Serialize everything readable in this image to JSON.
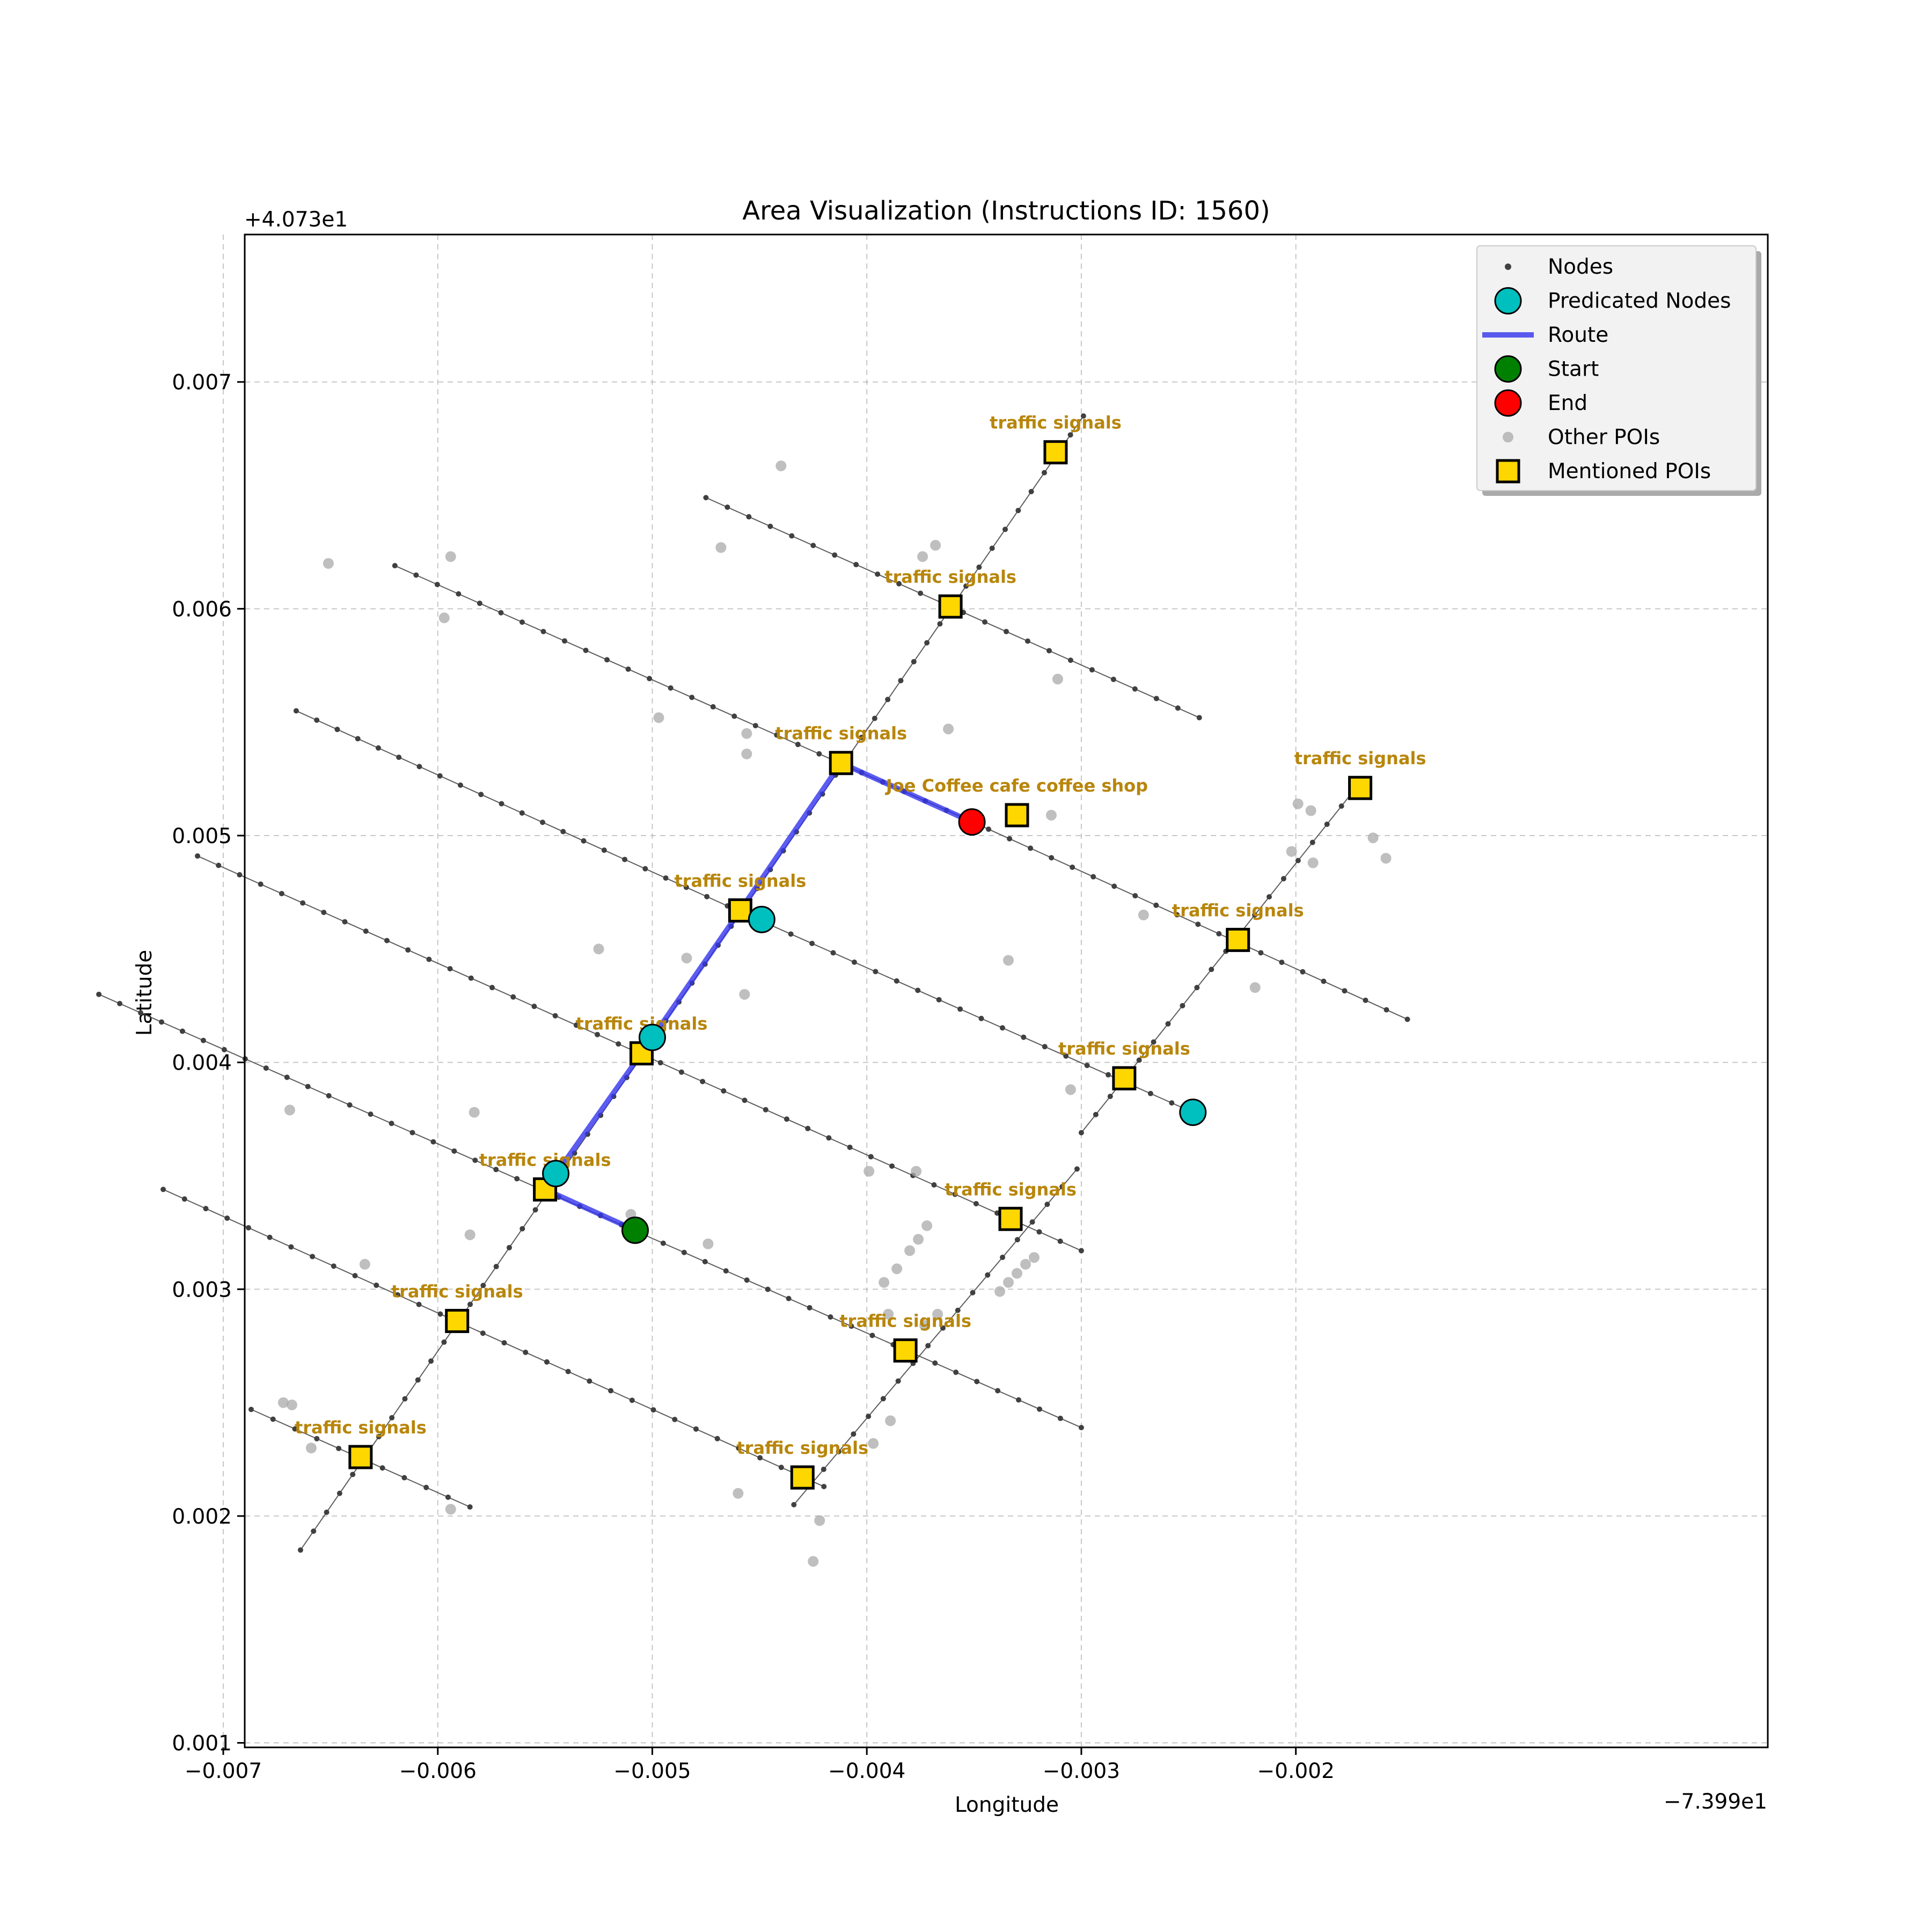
{
  "figure": {
    "title": "Area Visualization (Instructions ID: 1560)",
    "xlabel": "Longitude",
    "ylabel": "Latitude",
    "x_offset_label": "−7.399e1",
    "y_offset_label": "+4.073e1"
  },
  "chart_data": {
    "type": "scatter",
    "x_offset": -73.99,
    "y_offset": 40.73,
    "xlim": [
      -0.0069,
      0.0002
    ],
    "ylim": [
      0.00098,
      0.00765
    ],
    "grid": true,
    "legend_position": "top-right",
    "x_ticks": [
      -0.007,
      -0.006,
      -0.005,
      -0.004,
      -0.003,
      -0.002
    ],
    "x_tick_labels": [
      "−0.007",
      "−0.006",
      "−0.005",
      "−0.004",
      "−0.003",
      "−0.002"
    ],
    "y_ticks": [
      0.001,
      0.002,
      0.003,
      0.004,
      0.005,
      0.006,
      0.007
    ],
    "y_tick_labels": [
      "0.001",
      "0.002",
      "0.003",
      "0.004",
      "0.005",
      "0.006",
      "0.007"
    ],
    "colors": {
      "nodes": "#404040",
      "edges": "#404040",
      "predicated": "#00bfbf",
      "route": "#3333ee",
      "start": "#008000",
      "end": "#ff0000",
      "other_poi": "#a9a9a9",
      "mentioned_poi": "#ffd700",
      "poi_label": "#b8860b"
    },
    "legend": [
      {
        "label": "Nodes",
        "marker": "dot"
      },
      {
        "label": "Predicated Nodes",
        "marker": "cyan-circle"
      },
      {
        "label": "Route",
        "marker": "line"
      },
      {
        "label": "Start",
        "marker": "green-circle"
      },
      {
        "label": "End",
        "marker": "red-circle"
      },
      {
        "label": "Other POIs",
        "marker": "gray-dot"
      },
      {
        "label": "Mentioned POIs",
        "marker": "yellow-square"
      }
    ],
    "streets": [
      {
        "points": [
          [
            -0.00475,
            0.00649
          ],
          [
            -0.00245,
            0.00552
          ]
        ]
      },
      {
        "points": [
          [
            -0.0062,
            0.00619
          ],
          [
            -0.00353,
            0.00507
          ],
          [
            -0.00148,
            0.00419
          ]
        ]
      },
      {
        "points": [
          [
            -0.00666,
            0.00555
          ],
          [
            -0.00465,
            0.00469
          ],
          [
            -0.00248,
            0.00378
          ]
        ]
      },
      {
        "points": [
          [
            -0.00712,
            0.00491
          ],
          [
            -0.003,
            0.00317
          ]
        ]
      },
      {
        "points": [
          [
            -0.00758,
            0.0043
          ],
          [
            -0.003,
            0.00239
          ]
        ]
      },
      {
        "points": [
          [
            -0.00728,
            0.00344
          ],
          [
            -0.0042,
            0.00213
          ]
        ]
      },
      {
        "points": [
          [
            -0.00687,
            0.00247
          ],
          [
            -0.00585,
            0.00204
          ]
        ]
      },
      {
        "points": [
          [
            -0.00664,
            0.00185
          ],
          [
            -0.00299,
            0.00685
          ]
        ]
      },
      {
        "points": [
          [
            -0.00434,
            0.00205
          ],
          [
            -0.00302,
            0.00353
          ]
        ]
      },
      {
        "points": [
          [
            -0.003,
            0.00369
          ],
          [
            -0.00172,
            0.00521
          ]
        ]
      }
    ],
    "route": [
      [
        -0.00508,
        0.00326
      ],
      [
        -0.0055,
        0.00344
      ],
      [
        -0.00505,
        0.00404
      ],
      [
        -0.00459,
        0.00467
      ],
      [
        -0.00412,
        0.00532
      ],
      [
        -0.00351,
        0.00506
      ]
    ],
    "start": [
      -0.00508,
      0.00326
    ],
    "end": [
      -0.00351,
      0.00506
    ],
    "predicated_nodes": [
      [
        -0.00545,
        0.00351
      ],
      [
        -0.005,
        0.00411
      ],
      [
        -0.00449,
        0.00463
      ],
      [
        -0.00248,
        0.00378
      ]
    ],
    "mentioned_pois": [
      {
        "name": "traffic signals",
        "x": -0.00312,
        "y": 0.00669
      },
      {
        "name": "traffic signals",
        "x": -0.00361,
        "y": 0.00601
      },
      {
        "name": "traffic signals",
        "x": -0.00412,
        "y": 0.00532
      },
      {
        "name": "Joe Coffee cafe coffee shop",
        "x": -0.0033,
        "y": 0.00509
      },
      {
        "name": "traffic signals",
        "x": -0.00459,
        "y": 0.00467
      },
      {
        "name": "traffic signals",
        "x": -0.00505,
        "y": 0.00404
      },
      {
        "name": "traffic signals",
        "x": -0.0055,
        "y": 0.00344
      },
      {
        "name": "traffic signals",
        "x": -0.00591,
        "y": 0.00286
      },
      {
        "name": "traffic signals",
        "x": -0.00636,
        "y": 0.00226
      },
      {
        "name": "traffic signals",
        "x": -0.00382,
        "y": 0.00273
      },
      {
        "name": "traffic signals",
        "x": -0.00333,
        "y": 0.00331
      },
      {
        "name": "traffic signals",
        "x": -0.0028,
        "y": 0.00393
      },
      {
        "name": "traffic signals",
        "x": -0.00227,
        "y": 0.00454
      },
      {
        "name": "traffic signals",
        "x": -0.0017,
        "y": 0.00521
      },
      {
        "name": "traffic signals",
        "x": -0.0043,
        "y": 0.00217
      }
    ],
    "other_pois": [
      [
        -0.0044,
        0.00663
      ],
      [
        -0.00468,
        0.00627
      ],
      [
        -0.00651,
        0.0062
      ],
      [
        -0.00594,
        0.00623
      ],
      [
        -0.00597,
        0.00596
      ],
      [
        -0.00374,
        0.00623
      ],
      [
        -0.00368,
        0.00628
      ],
      [
        -0.00497,
        0.00552
      ],
      [
        -0.00456,
        0.00545
      ],
      [
        -0.00456,
        0.00536
      ],
      [
        -0.00362,
        0.00547
      ],
      [
        -0.00311,
        0.00569
      ],
      [
        -0.00314,
        0.00509
      ],
      [
        -0.0033,
        0.00506
      ],
      [
        -0.00525,
        0.0045
      ],
      [
        -0.00484,
        0.00446
      ],
      [
        -0.00334,
        0.00445
      ],
      [
        -0.00457,
        0.0043
      ],
      [
        -0.00271,
        0.00465
      ],
      [
        -0.00219,
        0.00433
      ],
      [
        -0.00305,
        0.00388
      ],
      [
        -0.00669,
        0.00379
      ],
      [
        -0.00583,
        0.00378
      ],
      [
        -0.00377,
        0.00352
      ],
      [
        -0.00399,
        0.00352
      ],
      [
        -0.0051,
        0.00333
      ],
      [
        -0.00474,
        0.0032
      ],
      [
        -0.00585,
        0.00324
      ],
      [
        -0.00634,
        0.00311
      ],
      [
        -0.00372,
        0.00328
      ],
      [
        -0.00376,
        0.00322
      ],
      [
        -0.0038,
        0.00317
      ],
      [
        -0.00392,
        0.00303
      ],
      [
        -0.00386,
        0.00309
      ],
      [
        -0.00334,
        0.00303
      ],
      [
        -0.0033,
        0.00307
      ],
      [
        -0.00326,
        0.00311
      ],
      [
        -0.00322,
        0.00314
      ],
      [
        -0.00338,
        0.00299
      ],
      [
        -0.00367,
        0.00289
      ],
      [
        -0.00373,
        0.00284
      ],
      [
        -0.0039,
        0.00289
      ],
      [
        -0.00389,
        0.00242
      ],
      [
        -0.00397,
        0.00232
      ],
      [
        -0.00672,
        0.0025
      ],
      [
        -0.00668,
        0.00249
      ],
      [
        -0.00659,
        0.0023
      ],
      [
        -0.0046,
        0.0021
      ],
      [
        -0.00422,
        0.00198
      ],
      [
        -0.00594,
        0.00203
      ],
      [
        -0.00425,
        0.0018
      ],
      [
        -0.00199,
        0.00514
      ],
      [
        -0.00193,
        0.00511
      ],
      [
        -0.00202,
        0.00493
      ],
      [
        -0.00192,
        0.00488
      ],
      [
        -0.00164,
        0.00499
      ],
      [
        -0.00158,
        0.0049
      ]
    ]
  }
}
